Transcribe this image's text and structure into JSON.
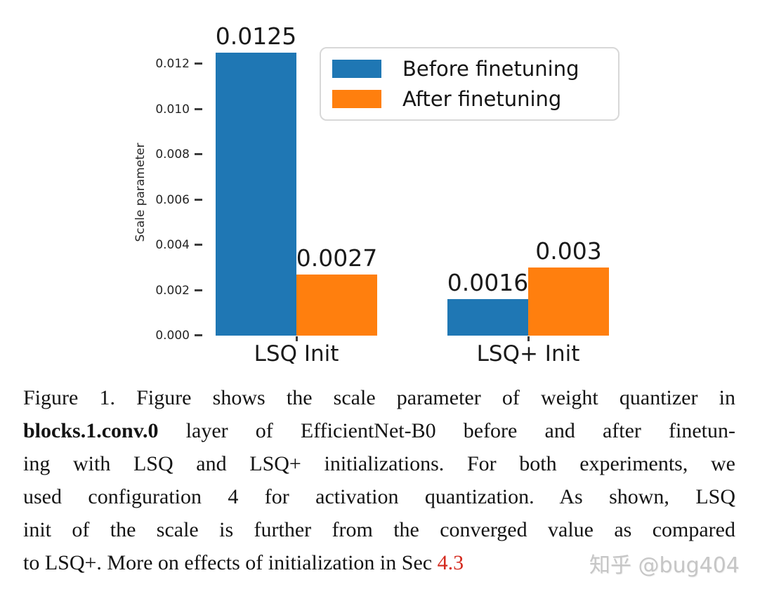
{
  "chart_data": {
    "type": "bar",
    "title": "",
    "categories": [
      "LSQ Init",
      "LSQ+ Init"
    ],
    "series": [
      {
        "name": "Before finetuning",
        "color": "#1f77b4",
        "values": [
          0.0125,
          0.0016
        ],
        "value_labels": [
          "0.0125",
          "0.0016"
        ]
      },
      {
        "name": "After finetuning",
        "color": "#ff7f0e",
        "values": [
          0.0027,
          0.003
        ],
        "value_labels": [
          "0.0027",
          "0.003"
        ]
      }
    ],
    "xlabel": "",
    "ylabel": "Scale parameter",
    "y_axis": {
      "tick_labels": [
        "0.000",
        "0.002",
        "0.004",
        "0.006",
        "0.008",
        "0.010",
        "0.012"
      ],
      "min": 0,
      "max": 0.013
    },
    "grid": false,
    "legend": {
      "position": "upper right",
      "entries": [
        "Before finetuning",
        "After finetuning"
      ]
    }
  },
  "caption": {
    "lines": [
      {
        "parts": [
          {
            "text": "Figure 1. Figure shows the scale parameter of weight quantizer in"
          }
        ]
      },
      {
        "parts": [
          {
            "text": "blocks.1.conv.0",
            "bold": true
          },
          {
            "text": " layer of EfficientNet-B0 before and after finetun-"
          }
        ]
      },
      {
        "parts": [
          {
            "text": "ing with LSQ and LSQ+ initializations. For both experiments, we"
          }
        ]
      },
      {
        "parts": [
          {
            "text": "used configuration 4 for activation quantization. As shown, LSQ"
          }
        ]
      },
      {
        "parts": [
          {
            "text": "init of the scale is further from the converged value as compared"
          }
        ]
      },
      {
        "parts": [
          {
            "text": "to LSQ+. More on effects of initialization in Sec "
          },
          {
            "text": "4.3",
            "ref": true
          }
        ]
      }
    ]
  },
  "watermark": {
    "text": "知乎 @bug404"
  },
  "colors": {
    "bar_blue": "#1f77b4",
    "bar_orange": "#ff7f0e",
    "section_ref_red": "#d42a1e",
    "watermark_gray": "#c6c6c6",
    "axis_text": "#262626",
    "caption_text": "#141414"
  }
}
